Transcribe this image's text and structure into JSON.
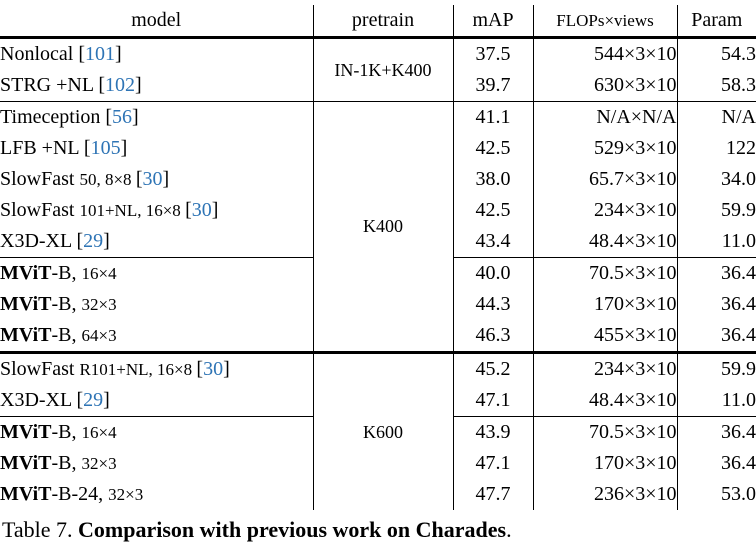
{
  "colors": {
    "citation_blue": "#2e74b5",
    "rule_color": "#000000",
    "text_color": "#000000",
    "background": "#ffffff"
  },
  "table": {
    "columns": [
      "model",
      "pretrain",
      "mAP",
      "FLOPs×views",
      "Param"
    ],
    "pretrain_groups": [
      {
        "label": "IN-1K+K400",
        "rows": 2
      },
      {
        "label": "K400",
        "rows": 8
      },
      {
        "label": "K600",
        "rows": 5
      }
    ],
    "rows": [
      {
        "model": {
          "bold": "",
          "text": "Nonlocal ",
          "small": "",
          "cite": "101"
        },
        "map": "37.5",
        "map_bold": false,
        "flops": "544×3×10",
        "param": "54.3",
        "rule": ""
      },
      {
        "model": {
          "bold": "",
          "text": "STRG +NL ",
          "small": "",
          "cite": "102"
        },
        "map": "39.7",
        "map_bold": false,
        "flops": "630×3×10",
        "param": "58.3",
        "rule": ""
      },
      {
        "model": {
          "bold": "",
          "text": "Timeception ",
          "small": "",
          "cite": "56"
        },
        "map": "41.1",
        "map_bold": false,
        "flops": "N/A×N/A",
        "param": "N/A",
        "rule": "thin"
      },
      {
        "model": {
          "bold": "",
          "text": "LFB +NL ",
          "small": "",
          "cite": "105"
        },
        "map": "42.5",
        "map_bold": false,
        "flops": "529×3×10",
        "param": "122",
        "rule": ""
      },
      {
        "model": {
          "bold": "",
          "text": "SlowFast ",
          "small": "50, 8×8 ",
          "cite": "30"
        },
        "map": "38.0",
        "map_bold": false,
        "flops": "65.7×3×10",
        "param": "34.0",
        "rule": ""
      },
      {
        "model": {
          "bold": "",
          "text": "SlowFast ",
          "small": "101+NL, 16×8 ",
          "cite": "30"
        },
        "map": "42.5",
        "map_bold": false,
        "flops": "234×3×10",
        "param": "59.9",
        "rule": ""
      },
      {
        "model": {
          "bold": "",
          "text": "X3D-XL ",
          "small": "",
          "cite": "29"
        },
        "map": "43.4",
        "map_bold": false,
        "flops": "48.4×3×10",
        "param": "11.0",
        "rule": ""
      },
      {
        "model": {
          "bold": "MViT",
          "text": "-B, ",
          "small": "16×4",
          "cite": ""
        },
        "map": "40.0",
        "map_bold": false,
        "flops": "70.5×3×10",
        "param": "36.4",
        "rule": "cmid"
      },
      {
        "model": {
          "bold": "MViT",
          "text": "-B, ",
          "small": "32×3",
          "cite": ""
        },
        "map": "44.3",
        "map_bold": false,
        "flops": "170×3×10",
        "param": "36.4",
        "rule": ""
      },
      {
        "model": {
          "bold": "MViT",
          "text": "-B, ",
          "small": "64×3",
          "cite": ""
        },
        "map": "46.3",
        "map_bold": true,
        "flops": "455×3×10",
        "param": "36.4",
        "rule": ""
      },
      {
        "model": {
          "bold": "",
          "text": "SlowFast ",
          "small": "R101+NL, 16×8 ",
          "cite": "30"
        },
        "map": "45.2",
        "map_bold": false,
        "flops": "234×3×10",
        "param": "59.9",
        "rule": "thick"
      },
      {
        "model": {
          "bold": "",
          "text": "X3D-XL ",
          "small": "",
          "cite": "29"
        },
        "map": "47.1",
        "map_bold": false,
        "flops": "48.4×3×10",
        "param": "11.0",
        "rule": ""
      },
      {
        "model": {
          "bold": "MViT",
          "text": "-B, ",
          "small": "16×4",
          "cite": ""
        },
        "map": "43.9",
        "map_bold": false,
        "flops": "70.5×3×10",
        "param": "36.4",
        "rule": "cmid"
      },
      {
        "model": {
          "bold": "MViT",
          "text": "-B, ",
          "small": "32×3",
          "cite": ""
        },
        "map": "47.1",
        "map_bold": false,
        "flops": "170×3×10",
        "param": "36.4",
        "rule": ""
      },
      {
        "model": {
          "bold": "MViT",
          "text": "-B-24, ",
          "small": "32×3",
          "cite": ""
        },
        "map": "47.7",
        "map_bold": true,
        "flops": "236×3×10",
        "param": "53.0",
        "rule": ""
      }
    ]
  },
  "caption": {
    "prefix": "Table 7. ",
    "bold_text": "Comparison with previous work on Charades",
    "suffix": "."
  }
}
